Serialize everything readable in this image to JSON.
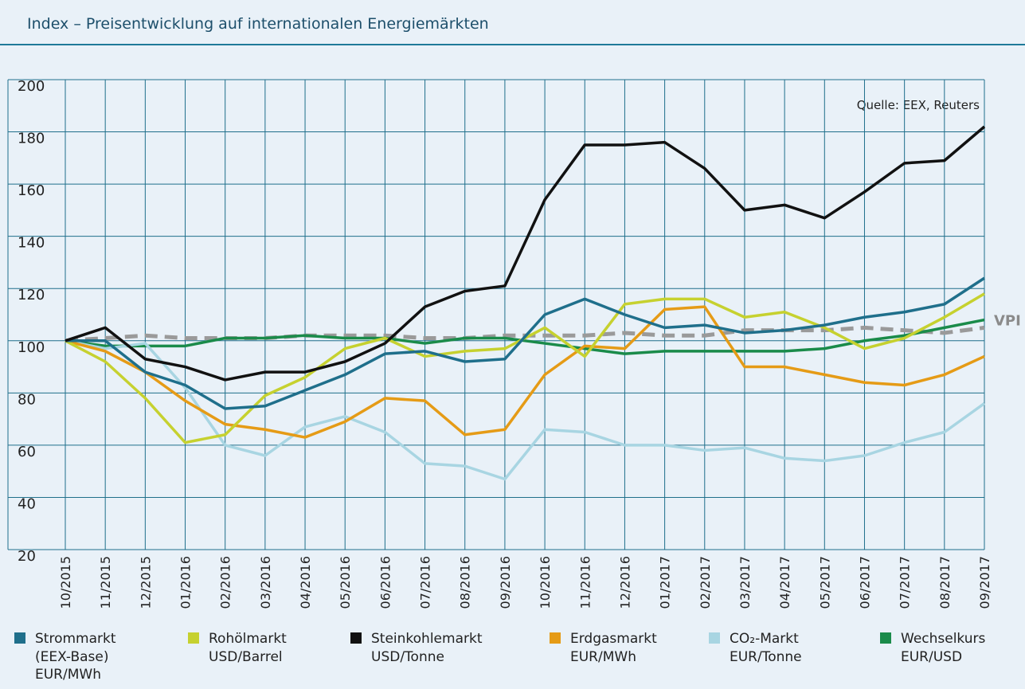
{
  "chart_data": {
    "type": "line",
    "title": "Index – Preisentwicklung auf internationalen Energiemärkten",
    "source": "Quelle: EEX, Reuters",
    "categories": [
      "10/2015",
      "11/2015",
      "12/2015",
      "01/2016",
      "02/2016",
      "03/2016",
      "04/2016",
      "05/2016",
      "06/2016",
      "07/2016",
      "08/2016",
      "09/2016",
      "10/2016",
      "11/2016",
      "12/2016",
      "01/2017",
      "02/2017",
      "03/2017",
      "04/2017",
      "05/2017",
      "06/2017",
      "07/2017",
      "08/2017",
      "09/2017"
    ],
    "ylim": [
      20,
      200
    ],
    "yticks": [
      20,
      40,
      60,
      80,
      100,
      120,
      140,
      160,
      180,
      200
    ],
    "grid": true,
    "series": [
      {
        "name": "VPI",
        "color": "#9a9a9a",
        "dashed": true,
        "values": [
          100,
          101,
          102,
          101,
          101,
          101,
          102,
          102,
          102,
          101,
          101,
          102,
          102,
          102,
          103,
          102,
          102,
          104,
          104,
          104,
          105,
          104,
          103,
          105
        ]
      },
      {
        "name": "Wechselkurs",
        "unit_lines": [
          "EUR/USD"
        ],
        "color": "#1a8b4a",
        "values": [
          100,
          98,
          98,
          98,
          101,
          101,
          102,
          101,
          101,
          99,
          101,
          101,
          99,
          97,
          95,
          96,
          96,
          96,
          96,
          97,
          100,
          102,
          105,
          108
        ]
      },
      {
        "name": "CO₂-Markt",
        "unit_lines": [
          "EUR/Tonne"
        ],
        "color": "#a8d5e2",
        "values": [
          100,
          97,
          99,
          82,
          60,
          56,
          67,
          71,
          65,
          53,
          52,
          47,
          66,
          65,
          60,
          60,
          58,
          59,
          55,
          54,
          56,
          61,
          65,
          76
        ]
      },
      {
        "name": "Erdgasmarkt",
        "unit_lines": [
          "EUR/MWh"
        ],
        "color": "#e59b16",
        "values": [
          100,
          96,
          88,
          77,
          68,
          66,
          63,
          69,
          78,
          77,
          64,
          66,
          87,
          98,
          97,
          112,
          113,
          90,
          90,
          87,
          84,
          83,
          87,
          94
        ]
      },
      {
        "name": "Rohölmarkt",
        "unit_lines": [
          "USD/Barrel"
        ],
        "color": "#c6d12f",
        "values": [
          100,
          92,
          78,
          61,
          64,
          79,
          86,
          97,
          101,
          94,
          96,
          97,
          105,
          94,
          114,
          116,
          116,
          109,
          111,
          105,
          97,
          101,
          109,
          118
        ]
      },
      {
        "name": "Strommarkt",
        "unit_lines": [
          "(EEX-Base)",
          "EUR/MWh"
        ],
        "color": "#1f6f8b",
        "values": [
          100,
          100,
          88,
          83,
          74,
          75,
          81,
          87,
          95,
          96,
          92,
          93,
          110,
          116,
          110,
          105,
          106,
          103,
          104,
          106,
          109,
          111,
          114,
          124
        ]
      },
      {
        "name": "Steinkohlemarkt",
        "unit_lines": [
          "USD/Tonne"
        ],
        "color": "#111111",
        "values": [
          100,
          105,
          93,
          90,
          85,
          88,
          88,
          92,
          99,
          113,
          119,
          121,
          154,
          175,
          175,
          176,
          166,
          150,
          152,
          147,
          157,
          168,
          169,
          182
        ]
      }
    ],
    "legend_order": [
      5,
      4,
      6,
      3,
      2,
      1
    ]
  }
}
